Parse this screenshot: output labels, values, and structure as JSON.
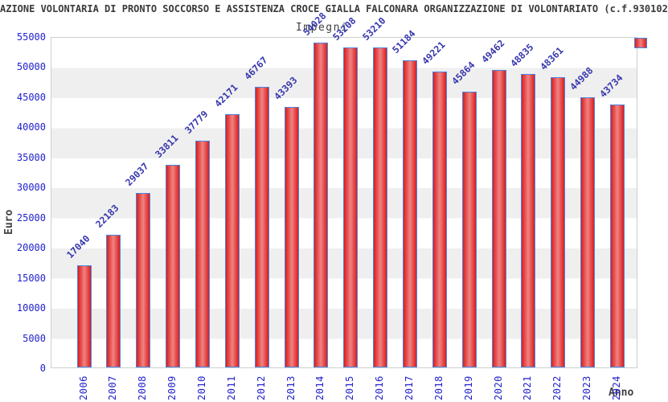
{
  "title": "AZIONE VOLONTARIA DI PRONTO SOCCORSO E ASSISTENZA CROCE GIALLA FALCONARA ORGANIZZAZIONE DI VOLONTARIATO (c.f.930102",
  "legend": {
    "label": "Impegni",
    "swatch_color": "#d81e1e",
    "swatch_border_color": "#4b86e0"
  },
  "axes": {
    "y_title": "Euro",
    "x_title": "Anno"
  },
  "colors": {
    "bar_fill_edge": "#d81e1e",
    "bar_fill_center": "#ef8484",
    "bar_border": "#4b86e0",
    "tick_label": "#2222cc",
    "value_label": "#3636ae",
    "band_gray": "#efefef",
    "plot_border": "#cfcfcf",
    "text_dark": "#404040"
  },
  "chart_data": {
    "type": "bar",
    "title": "AZIONE VOLONTARIA DI PRONTO SOCCORSO E ASSISTENZA CROCE GIALLA FALCONARA ORGANIZZAZIONE DI VOLONTARIATO (c.f.930102",
    "series_name": "Impegni",
    "xlabel": "Anno",
    "ylabel": "Euro",
    "ylim": [
      0,
      55000
    ],
    "ytick_step": 5000,
    "grid": "alternating-bands",
    "legend_position": "top",
    "value_labels_rotated_deg": -45,
    "xtick_labels_rotated_deg": -90,
    "categories": [
      "2006",
      "2007",
      "2008",
      "2009",
      "2010",
      "2011",
      "2012",
      "2013",
      "2014",
      "2015",
      "2016",
      "2017",
      "2018",
      "2019",
      "2020",
      "2021",
      "2022",
      "2023",
      "2024"
    ],
    "values": [
      17040,
      22183,
      29037,
      33811,
      37779,
      42171,
      46767,
      43393,
      54028,
      53208,
      53210,
      51184,
      49221,
      45864,
      49462,
      48835,
      48361,
      44988,
      43734
    ]
  }
}
